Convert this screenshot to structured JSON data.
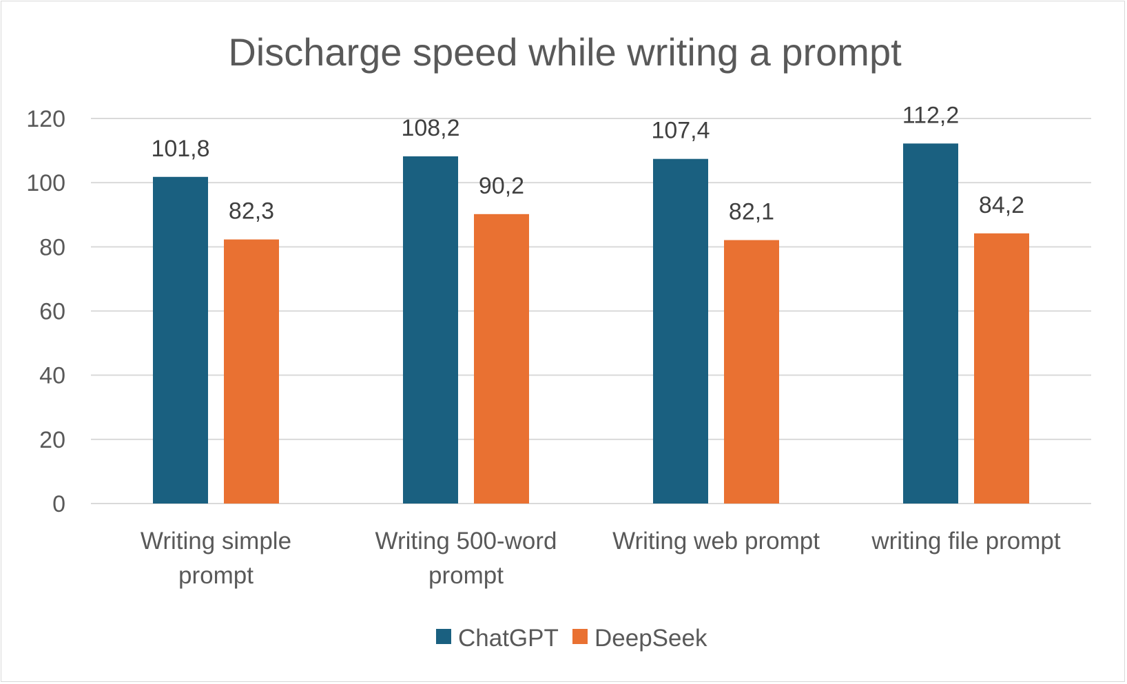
{
  "chart_data": {
    "type": "bar",
    "title": "Discharge speed while writing a prompt",
    "xlabel": "",
    "ylabel": "",
    "categories": [
      [
        "Writing simple",
        "prompt"
      ],
      [
        "Writing 500-word",
        "prompt"
      ],
      [
        "Writing web prompt"
      ],
      [
        "writing file prompt"
      ]
    ],
    "series": [
      {
        "name": "ChatGPT",
        "color": "#1a6080",
        "values": [
          101.8,
          108.2,
          107.4,
          112.2
        ],
        "labels": [
          "101,8",
          "108,2",
          "107,4",
          "112,2"
        ]
      },
      {
        "name": "DeepSeek",
        "color": "#e97132",
        "values": [
          82.3,
          90.2,
          82.1,
          84.2
        ],
        "labels": [
          "82,3",
          "90,2",
          "82,1",
          "84,2"
        ]
      }
    ],
    "ylim": [
      0,
      120
    ],
    "yticks": [
      "0",
      "20",
      "40",
      "60",
      "80",
      "100",
      "120"
    ],
    "grid": true,
    "legend_position": "bottom"
  }
}
